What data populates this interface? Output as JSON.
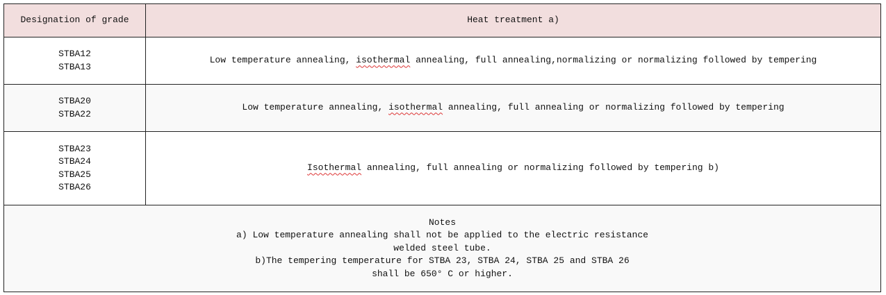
{
  "header": {
    "grade": "Designation of grade",
    "treatment": "Heat treatment a)"
  },
  "rows": [
    {
      "grades": [
        "STBA12",
        "STBA13"
      ],
      "pre": "Low temperature annealing, ",
      "spell": "isothermal",
      "post": " annealing, full annealing,normalizing or normalizing followed by tempering"
    },
    {
      "grades": [
        "STBA20",
        "STBA22"
      ],
      "pre": "Low temperature annealing, ",
      "spell": "isothermal",
      "post": " annealing, full annealing or normalizing followed by tempering"
    },
    {
      "grades": [
        "STBA23",
        "STBA24",
        "STBA25",
        "STBA26"
      ],
      "pre": "",
      "spell": "Isothermal",
      "post": " annealing, full annealing or normalizing followed by tempering b)"
    }
  ],
  "notes": {
    "title": "Notes",
    "lines": [
      "a) Low temperature annealing shall not be applied to the electric resistance",
      "welded steel tube.",
      "b)The tempering temperature for STBA 23, STBA 24, STBA 25 and STBA 26",
      "shall be 650° C or higher."
    ]
  },
  "colors": {
    "header_bg": "#f2dede",
    "alt_row_bg": "#f9f9f9",
    "spellcheck": "#dd3333"
  }
}
